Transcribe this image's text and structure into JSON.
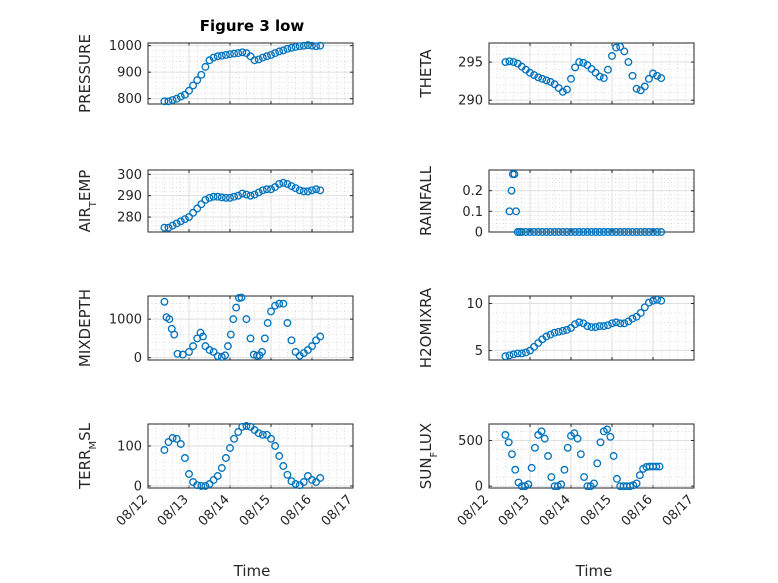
{
  "figure_title": "Figure 3 low",
  "xlabel": "Time",
  "colors": {
    "series": "#0072BD",
    "axis": "#262626",
    "grid": "#dcdcdc"
  },
  "chart_data": [
    {
      "type": "scatter",
      "ylabel": "PRESSURE",
      "xlim": [
        0,
        5
      ],
      "ylim": [
        780,
        1010
      ],
      "yticks": [
        800,
        900,
        1000
      ],
      "yticklabels": [
        "800",
        "900",
        "1000"
      ],
      "xticks": [
        0,
        1,
        2,
        3,
        4,
        5
      ],
      "xticklabels": [],
      "x": [
        0.4,
        0.5,
        0.6,
        0.7,
        0.8,
        0.9,
        1.0,
        1.1,
        1.2,
        1.3,
        1.4,
        1.5,
        1.6,
        1.7,
        1.8,
        1.9,
        2.0,
        2.1,
        2.2,
        2.3,
        2.4,
        2.5,
        2.6,
        2.7,
        2.8,
        2.9,
        3.0,
        3.1,
        3.2,
        3.3,
        3.4,
        3.5,
        3.6,
        3.7,
        3.8,
        3.9,
        4.0,
        4.1,
        4.2
      ],
      "y": [
        790,
        790,
        795,
        800,
        808,
        815,
        830,
        850,
        870,
        890,
        920,
        945,
        955,
        960,
        962,
        965,
        968,
        970,
        972,
        975,
        972,
        960,
        945,
        948,
        955,
        960,
        965,
        972,
        978,
        982,
        988,
        992,
        995,
        998,
        1000,
        1002,
        1000,
        998,
        1000
      ]
    },
    {
      "type": "scatter",
      "ylabel": "THETA",
      "xlim": [
        0,
        5
      ],
      "ylim": [
        289.5,
        297.5
      ],
      "yticks": [
        290,
        295
      ],
      "yticklabels": [
        "290",
        "295"
      ],
      "xticks": [
        0,
        1,
        2,
        3,
        4,
        5
      ],
      "xticklabels": [],
      "x": [
        0.4,
        0.5,
        0.6,
        0.7,
        0.8,
        0.9,
        1.0,
        1.1,
        1.2,
        1.3,
        1.4,
        1.5,
        1.6,
        1.7,
        1.8,
        1.9,
        2.0,
        2.1,
        2.2,
        2.3,
        2.4,
        2.5,
        2.6,
        2.7,
        2.8,
        2.9,
        3.0,
        3.1,
        3.2,
        3.3,
        3.4,
        3.5,
        3.6,
        3.7,
        3.8,
        3.9,
        4.0,
        4.1,
        4.2
      ],
      "y": [
        295.0,
        295.1,
        295.0,
        294.8,
        294.4,
        294.0,
        293.6,
        293.3,
        293.0,
        292.8,
        292.6,
        292.4,
        292.1,
        291.6,
        291.1,
        291.4,
        292.8,
        294.3,
        295.0,
        294.9,
        294.6,
        294.1,
        293.6,
        293.1,
        292.9,
        294.0,
        295.8,
        296.9,
        297.0,
        296.4,
        295.0,
        293.2,
        291.5,
        291.3,
        291.8,
        292.8,
        293.5,
        293.2,
        292.9
      ]
    },
    {
      "type": "scatter",
      "ylabel": "AIR_TEMP",
      "xlim": [
        0,
        5
      ],
      "ylim": [
        273,
        302
      ],
      "yticks": [
        280,
        290,
        300
      ],
      "yticklabels": [
        "280",
        "290",
        "300"
      ],
      "xticks": [
        0,
        1,
        2,
        3,
        4,
        5
      ],
      "xticklabels": [],
      "x": [
        0.4,
        0.5,
        0.6,
        0.7,
        0.8,
        0.9,
        1.0,
        1.1,
        1.2,
        1.3,
        1.4,
        1.5,
        1.6,
        1.7,
        1.8,
        1.9,
        2.0,
        2.1,
        2.2,
        2.3,
        2.4,
        2.5,
        2.6,
        2.7,
        2.8,
        2.9,
        3.0,
        3.1,
        3.2,
        3.3,
        3.4,
        3.5,
        3.6,
        3.7,
        3.8,
        3.9,
        4.0,
        4.1,
        4.2
      ],
      "y": [
        275,
        275,
        276,
        277,
        278,
        279,
        280,
        282,
        284,
        286,
        288,
        289,
        289.5,
        289.5,
        289.2,
        289,
        289,
        289.5,
        290,
        291,
        290.5,
        290,
        290.5,
        291.5,
        292.5,
        293,
        293,
        294,
        295.5,
        296,
        295.5,
        294.5,
        293.5,
        292.5,
        292,
        292,
        292.5,
        293,
        292.5
      ]
    },
    {
      "type": "scatter",
      "ylabel": "RAINFALL",
      "xlim": [
        0,
        5
      ],
      "ylim": [
        0,
        0.3
      ],
      "yticks": [
        0,
        0.1,
        0.2
      ],
      "yticklabels": [
        "0",
        "0.1",
        "0.2"
      ],
      "xticks": [
        0,
        1,
        2,
        3,
        4,
        5
      ],
      "xticklabels": [],
      "x": [
        0.5,
        0.55,
        0.58,
        0.62,
        0.66,
        0.7,
        0.75,
        0.8,
        0.9,
        1.0,
        1.1,
        1.2,
        1.3,
        1.4,
        1.5,
        1.6,
        1.7,
        1.8,
        1.9,
        2.0,
        2.1,
        2.2,
        2.3,
        2.4,
        2.5,
        2.6,
        2.7,
        2.8,
        2.9,
        3.0,
        3.1,
        3.2,
        3.3,
        3.4,
        3.5,
        3.6,
        3.7,
        3.8,
        3.9,
        4.0,
        4.1,
        4.2
      ],
      "y": [
        0.1,
        0.2,
        0.28,
        0.28,
        0.1,
        0,
        0,
        0,
        0,
        0,
        0,
        0,
        0,
        0,
        0,
        0,
        0,
        0,
        0,
        0,
        0,
        0,
        0,
        0,
        0,
        0,
        0,
        0,
        0,
        0,
        0,
        0,
        0,
        0,
        0,
        0,
        0,
        0,
        0,
        0,
        0,
        0
      ]
    },
    {
      "type": "scatter",
      "ylabel": "MIXDEPTH",
      "xlim": [
        0,
        5
      ],
      "ylim": [
        -60,
        1600
      ],
      "yticks": [
        0,
        1000
      ],
      "yticklabels": [
        "0",
        "1000"
      ],
      "xticks": [
        0,
        1,
        2,
        3,
        4,
        5
      ],
      "xticklabels": [],
      "x": [
        0.4,
        0.45,
        0.52,
        0.58,
        0.64,
        0.72,
        0.85,
        1.0,
        1.1,
        1.2,
        1.28,
        1.34,
        1.4,
        1.5,
        1.6,
        1.7,
        1.8,
        1.88,
        1.95,
        2.02,
        2.08,
        2.15,
        2.22,
        2.28,
        2.4,
        2.5,
        2.58,
        2.66,
        2.72,
        2.78,
        2.85,
        2.92,
        3.0,
        3.1,
        3.2,
        3.3,
        3.4,
        3.5,
        3.6,
        3.7,
        3.8,
        3.9,
        4.0,
        4.1,
        4.2
      ],
      "y": [
        1450,
        1050,
        1000,
        750,
        600,
        100,
        80,
        150,
        300,
        500,
        650,
        550,
        300,
        200,
        150,
        40,
        20,
        60,
        300,
        600,
        1000,
        1300,
        1550,
        1560,
        1000,
        500,
        80,
        50,
        60,
        150,
        500,
        900,
        1200,
        1350,
        1400,
        1400,
        900,
        450,
        150,
        50,
        120,
        200,
        300,
        450,
        550
      ]
    },
    {
      "type": "scatter",
      "ylabel": "H2OMIXRA",
      "xlim": [
        0,
        5
      ],
      "ylim": [
        4,
        10.8
      ],
      "yticks": [
        5,
        10
      ],
      "yticklabels": [
        "5",
        "10"
      ],
      "xticks": [
        0,
        1,
        2,
        3,
        4,
        5
      ],
      "xticklabels": [],
      "x": [
        0.4,
        0.5,
        0.6,
        0.7,
        0.8,
        0.9,
        1.0,
        1.1,
        1.2,
        1.3,
        1.4,
        1.5,
        1.6,
        1.7,
        1.8,
        1.9,
        2.0,
        2.1,
        2.2,
        2.3,
        2.4,
        2.5,
        2.6,
        2.7,
        2.8,
        2.9,
        3.0,
        3.1,
        3.2,
        3.3,
        3.4,
        3.5,
        3.6,
        3.7,
        3.8,
        3.9,
        4.0,
        4.1,
        4.2
      ],
      "y": [
        4.4,
        4.5,
        4.6,
        4.7,
        4.7,
        4.8,
        5.0,
        5.4,
        5.8,
        6.2,
        6.5,
        6.7,
        6.9,
        7.0,
        7.1,
        7.2,
        7.4,
        7.8,
        8.0,
        7.9,
        7.6,
        7.5,
        7.5,
        7.6,
        7.6,
        7.7,
        7.9,
        8.0,
        7.9,
        7.9,
        8.1,
        8.4,
        8.6,
        9.0,
        9.6,
        10.1,
        10.3,
        10.4,
        10.3
      ]
    },
    {
      "type": "scatter",
      "ylabel": "TERR_MSL",
      "xlim": [
        0,
        5
      ],
      "ylim": [
        -5,
        155
      ],
      "yticks": [
        0,
        100
      ],
      "yticklabels": [
        "0",
        "100"
      ],
      "xticks": [
        0,
        1,
        2,
        3,
        4,
        5
      ],
      "xticklabels": [
        "08/12",
        "08/13",
        "08/14",
        "08/15",
        "08/16",
        "08/17"
      ],
      "x": [
        0.4,
        0.5,
        0.6,
        0.7,
        0.8,
        0.9,
        1.0,
        1.1,
        1.2,
        1.3,
        1.4,
        1.5,
        1.6,
        1.7,
        1.8,
        1.9,
        2.0,
        2.1,
        2.2,
        2.3,
        2.4,
        2.5,
        2.6,
        2.7,
        2.8,
        2.9,
        3.0,
        3.1,
        3.2,
        3.3,
        3.4,
        3.5,
        3.6,
        3.7,
        3.8,
        3.9,
        4.0,
        4.1,
        4.2
      ],
      "y": [
        90,
        110,
        120,
        118,
        105,
        70,
        30,
        10,
        2,
        0,
        0,
        5,
        15,
        25,
        45,
        70,
        95,
        118,
        135,
        148,
        150,
        148,
        140,
        132,
        128,
        128,
        118,
        100,
        75,
        50,
        28,
        12,
        5,
        2,
        10,
        25,
        15,
        10,
        20
      ]
    },
    {
      "type": "scatter",
      "ylabel": "SUN_FLUX",
      "xlim": [
        0,
        5
      ],
      "ylim": [
        -20,
        680
      ],
      "yticks": [
        0,
        500
      ],
      "yticklabels": [
        "0",
        "500"
      ],
      "xticks": [
        0,
        1,
        2,
        3,
        4,
        5
      ],
      "xticklabels": [
        "08/12",
        "08/13",
        "08/14",
        "08/15",
        "08/16",
        "08/17"
      ],
      "x": [
        0.4,
        0.48,
        0.56,
        0.64,
        0.72,
        0.8,
        0.88,
        0.96,
        1.04,
        1.12,
        1.2,
        1.28,
        1.36,
        1.44,
        1.52,
        1.6,
        1.68,
        1.76,
        1.84,
        1.92,
        2.0,
        2.08,
        2.16,
        2.24,
        2.32,
        2.4,
        2.48,
        2.56,
        2.64,
        2.72,
        2.8,
        2.88,
        2.96,
        3.04,
        3.12,
        3.2,
        3.28,
        3.36,
        3.44,
        3.52,
        3.6,
        3.68,
        3.76,
        3.84,
        3.92,
        4.0,
        4.08,
        4.16
      ],
      "y": [
        560,
        480,
        350,
        180,
        40,
        0,
        0,
        20,
        200,
        420,
        560,
        600,
        520,
        330,
        100,
        0,
        0,
        20,
        180,
        420,
        550,
        580,
        520,
        350,
        100,
        0,
        0,
        30,
        250,
        480,
        600,
        620,
        540,
        330,
        80,
        0,
        0,
        0,
        0,
        10,
        30,
        120,
        190,
        210,
        215,
        215,
        215,
        215
      ]
    }
  ]
}
